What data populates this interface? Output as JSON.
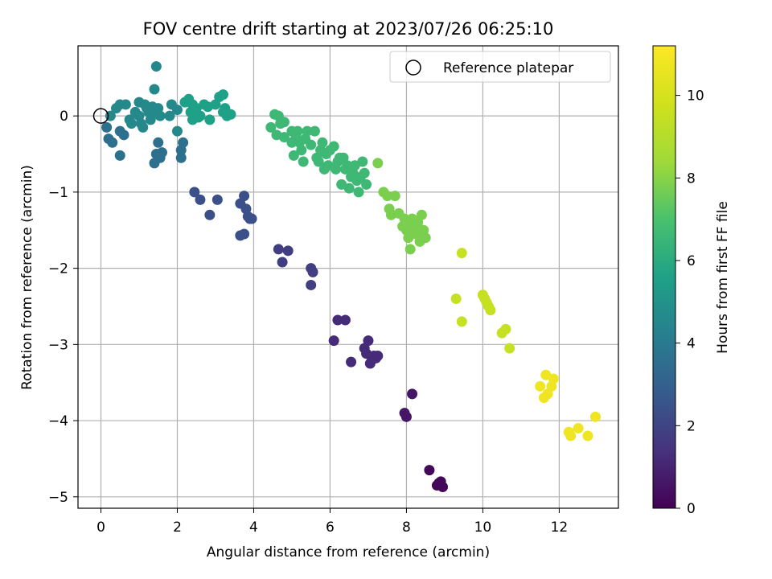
{
  "chart_data": {
    "type": "scatter",
    "title": "FOV centre drift starting at 2023/07/26 06:25:10",
    "xlabel": "Angular distance from reference (arcmin)",
    "ylabel": "Rotation from reference (arcmin)",
    "xlim": [
      -0.6,
      13.55
    ],
    "ylim": [
      -5.15,
      0.92
    ],
    "xticks": [
      0,
      2,
      4,
      6,
      8,
      10,
      12
    ],
    "yticks": [
      0,
      -1,
      -2,
      -3,
      -4,
      -5
    ],
    "grid": true,
    "legend": {
      "label": "Reference platepar",
      "placement": "top-right"
    },
    "reference_point": {
      "x": 0,
      "y": 0
    },
    "colorbar": {
      "label": "Hours from first FF file",
      "colormap": "viridis",
      "range": [
        0,
        11.2
      ],
      "ticks": [
        0,
        2,
        4,
        6,
        8,
        10
      ]
    },
    "series": [
      {
        "c": 0.2,
        "points": [
          [
            8.6,
            -4.65
          ],
          [
            8.8,
            -4.85
          ],
          [
            8.85,
            -4.82
          ],
          [
            8.9,
            -4.8
          ],
          [
            8.95,
            -4.87
          ]
        ]
      },
      {
        "c": 0.6,
        "points": [
          [
            7.95,
            -3.9
          ],
          [
            8.0,
            -3.95
          ],
          [
            8.15,
            -3.65
          ]
        ]
      },
      {
        "c": 1.2,
        "points": [
          [
            6.1,
            -2.95
          ],
          [
            6.2,
            -2.68
          ],
          [
            6.4,
            -2.68
          ],
          [
            6.55,
            -3.23
          ],
          [
            6.9,
            -3.05
          ],
          [
            7.0,
            -2.95
          ],
          [
            6.95,
            -3.12
          ],
          [
            7.05,
            -3.25
          ],
          [
            7.1,
            -3.2
          ],
          [
            7.15,
            -3.15
          ],
          [
            7.2,
            -3.18
          ],
          [
            7.25,
            -3.15
          ]
        ]
      },
      {
        "c": 1.8,
        "points": [
          [
            4.65,
            -1.75
          ],
          [
            4.75,
            -1.92
          ],
          [
            4.9,
            -1.77
          ],
          [
            5.5,
            -2.0
          ],
          [
            5.55,
            -2.05
          ],
          [
            5.5,
            -2.22
          ]
        ]
      },
      {
        "c": 2.4,
        "points": [
          [
            2.45,
            -1.0
          ],
          [
            2.6,
            -1.1
          ],
          [
            2.85,
            -1.3
          ],
          [
            3.05,
            -1.1
          ],
          [
            3.65,
            -1.57
          ],
          [
            3.75,
            -1.55
          ],
          [
            3.65,
            -1.15
          ],
          [
            3.75,
            -1.05
          ],
          [
            3.8,
            -1.22
          ],
          [
            3.85,
            -1.32
          ],
          [
            3.9,
            -1.35
          ],
          [
            3.95,
            -1.35
          ]
        ]
      },
      {
        "c": 3.6,
        "points": [
          [
            0.15,
            -0.15
          ],
          [
            0.2,
            -0.3
          ],
          [
            0.3,
            -0.35
          ],
          [
            0.5,
            -0.52
          ],
          [
            0.5,
            -0.2
          ],
          [
            0.6,
            -0.25
          ],
          [
            1.4,
            -0.62
          ],
          [
            1.45,
            -0.5
          ],
          [
            1.5,
            -0.35
          ],
          [
            1.55,
            -0.55
          ],
          [
            1.6,
            -0.48
          ],
          [
            2.1,
            -0.55
          ],
          [
            2.1,
            -0.45
          ],
          [
            2.15,
            -0.35
          ]
        ]
      },
      {
        "c": 4.6,
        "points": [
          [
            0.25,
            0.0
          ],
          [
            0.4,
            0.1
          ],
          [
            0.5,
            0.15
          ],
          [
            0.65,
            0.15
          ],
          [
            0.75,
            -0.05
          ],
          [
            0.8,
            -0.1
          ],
          [
            0.9,
            0.05
          ],
          [
            1.0,
            0.0
          ],
          [
            1.0,
            0.18
          ],
          [
            1.05,
            -0.1
          ],
          [
            1.1,
            -0.15
          ],
          [
            1.15,
            0.15
          ],
          [
            1.2,
            0.1
          ],
          [
            1.25,
            0.05
          ],
          [
            1.3,
            -0.05
          ],
          [
            1.35,
            0.12
          ],
          [
            1.4,
            0.05
          ],
          [
            1.4,
            0.35
          ],
          [
            1.45,
            0.65
          ],
          [
            1.5,
            0.1
          ],
          [
            1.55,
            0.0
          ],
          [
            1.8,
            0.0
          ],
          [
            1.85,
            0.15
          ],
          [
            2.0,
            0.08
          ],
          [
            2.0,
            -0.2
          ]
        ]
      },
      {
        "c": 5.6,
        "points": [
          [
            2.2,
            0.18
          ],
          [
            2.3,
            0.22
          ],
          [
            2.35,
            0.05
          ],
          [
            2.4,
            0.15
          ],
          [
            2.4,
            -0.05
          ],
          [
            2.5,
            0.1
          ],
          [
            2.55,
            -0.02
          ],
          [
            2.6,
            0.0
          ],
          [
            2.7,
            0.15
          ],
          [
            2.8,
            0.12
          ],
          [
            2.85,
            -0.05
          ],
          [
            3.0,
            0.15
          ],
          [
            3.1,
            0.25
          ],
          [
            3.2,
            0.28
          ],
          [
            3.2,
            0.05
          ],
          [
            3.25,
            0.1
          ],
          [
            3.3,
            0.0
          ],
          [
            3.4,
            0.02
          ]
        ]
      },
      {
        "c": 6.6,
        "points": [
          [
            4.45,
            -0.15
          ],
          [
            4.55,
            0.02
          ],
          [
            4.6,
            -0.25
          ],
          [
            4.65,
            0.0
          ],
          [
            4.7,
            -0.1
          ],
          [
            4.8,
            -0.08
          ],
          [
            4.8,
            -0.28
          ],
          [
            5.0,
            -0.2
          ],
          [
            5.0,
            -0.35
          ],
          [
            5.05,
            -0.52
          ],
          [
            5.1,
            -0.25
          ],
          [
            5.15,
            -0.2
          ],
          [
            5.2,
            -0.35
          ],
          [
            5.25,
            -0.45
          ],
          [
            5.3,
            -0.6
          ],
          [
            5.35,
            -0.3
          ],
          [
            5.4,
            -0.2
          ],
          [
            5.5,
            -0.38
          ],
          [
            5.6,
            -0.2
          ],
          [
            5.65,
            -0.55
          ],
          [
            5.7,
            -0.6
          ],
          [
            5.75,
            -0.45
          ],
          [
            5.8,
            -0.35
          ],
          [
            5.85,
            -0.7
          ],
          [
            5.9,
            -0.5
          ],
          [
            5.95,
            -0.65
          ],
          [
            6.0,
            -0.45
          ],
          [
            6.1,
            -0.4
          ],
          [
            6.15,
            -0.7
          ],
          [
            6.2,
            -0.6
          ],
          [
            6.25,
            -0.55
          ],
          [
            6.3,
            -0.9
          ],
          [
            6.35,
            -0.55
          ],
          [
            6.4,
            -0.7
          ],
          [
            6.45,
            -0.65
          ],
          [
            6.5,
            -0.95
          ],
          [
            6.55,
            -0.8
          ],
          [
            6.6,
            -0.75
          ],
          [
            6.65,
            -0.65
          ],
          [
            6.7,
            -0.85
          ],
          [
            6.75,
            -1.0
          ],
          [
            6.8,
            -0.8
          ],
          [
            6.85,
            -0.6
          ],
          [
            6.9,
            -0.75
          ],
          [
            6.95,
            -0.9
          ]
        ]
      },
      {
        "c": 7.8,
        "points": [
          [
            7.25,
            -0.62
          ],
          [
            7.4,
            -1.0
          ],
          [
            7.5,
            -1.05
          ],
          [
            7.55,
            -1.22
          ],
          [
            7.6,
            -1.3
          ],
          [
            7.7,
            -1.05
          ],
          [
            7.8,
            -1.28
          ],
          [
            7.9,
            -1.45
          ],
          [
            7.95,
            -1.35
          ],
          [
            8.0,
            -1.5
          ],
          [
            8.05,
            -1.6
          ],
          [
            8.1,
            -1.45
          ],
          [
            8.15,
            -1.35
          ],
          [
            8.1,
            -1.75
          ],
          [
            8.2,
            -1.5
          ],
          [
            8.25,
            -1.55
          ],
          [
            8.3,
            -1.4
          ],
          [
            8.35,
            -1.65
          ],
          [
            8.4,
            -1.3
          ],
          [
            8.45,
            -1.5
          ],
          [
            8.5,
            -1.6
          ]
        ]
      },
      {
        "c": 9.5,
        "points": [
          [
            9.3,
            -2.4
          ],
          [
            9.45,
            -2.7
          ],
          [
            9.45,
            -1.8
          ],
          [
            10.0,
            -2.35
          ],
          [
            10.05,
            -2.4
          ],
          [
            10.1,
            -2.45
          ],
          [
            10.15,
            -2.5
          ],
          [
            10.2,
            -2.55
          ],
          [
            10.5,
            -2.85
          ],
          [
            10.6,
            -2.8
          ],
          [
            10.7,
            -3.05
          ]
        ]
      },
      {
        "c": 10.8,
        "points": [
          [
            11.5,
            -3.55
          ],
          [
            11.6,
            -3.7
          ],
          [
            11.65,
            -3.4
          ],
          [
            11.7,
            -3.65
          ],
          [
            11.8,
            -3.55
          ],
          [
            11.85,
            -3.45
          ],
          [
            12.25,
            -4.15
          ],
          [
            12.3,
            -4.2
          ],
          [
            12.5,
            -4.1
          ],
          [
            12.75,
            -4.2
          ],
          [
            12.95,
            -3.95
          ]
        ]
      }
    ]
  }
}
